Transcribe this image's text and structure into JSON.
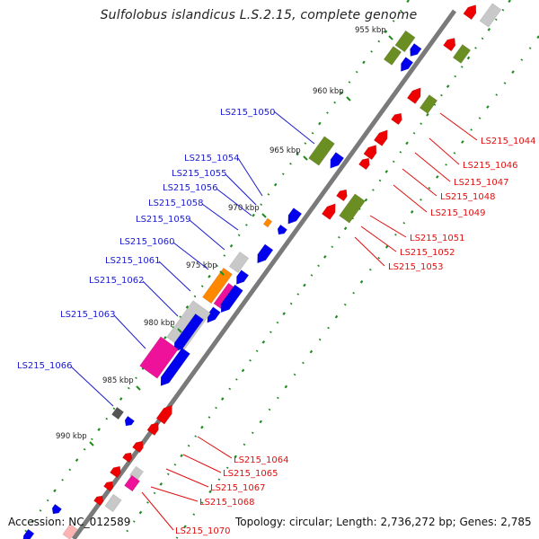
{
  "title": "Sulfolobus islandicus L.S.2.15, complete genome",
  "footer": {
    "accession": "Accession: NC_012589",
    "topology": "Topology: circular; Length: 2,736,272 bp; Genes: 2,785"
  },
  "scale_ticks": [
    "955 kbp",
    "960 kbp",
    "965 kbp",
    "970 kbp",
    "975 kbp",
    "980 kbp",
    "985 kbp",
    "990 kbp"
  ],
  "gene_labels_forward": [
    "LS215_1050",
    "LS215_1054",
    "LS215_1055",
    "LS215_1056",
    "LS215_1058",
    "LS215_1059",
    "LS215_1060",
    "LS215_1061",
    "LS215_1062",
    "LS215_1063",
    "LS215_1066"
  ],
  "gene_labels_reverse": [
    "LS215_1044",
    "LS215_1046",
    "LS215_1047",
    "LS215_1048",
    "LS215_1049",
    "LS215_1051",
    "LS215_1052",
    "LS215_1053",
    "LS215_1064",
    "LS215_1065",
    "LS215_1067",
    "LS215_1068",
    "LS215_1070"
  ],
  "colors": {
    "forward_label": "#1a1ad0",
    "reverse_label": "#e01010",
    "cds_forward": "#0000ee",
    "cds_reverse": "#ee0000",
    "rna_feature": "#6b8e23",
    "magenta_feature": "#ee1199",
    "orange_feature": "#ff8800",
    "grey_feature": "#c8c8c8",
    "dark_grey_feature": "#555555",
    "backbone": "#808080",
    "dots": "#228b22"
  }
}
